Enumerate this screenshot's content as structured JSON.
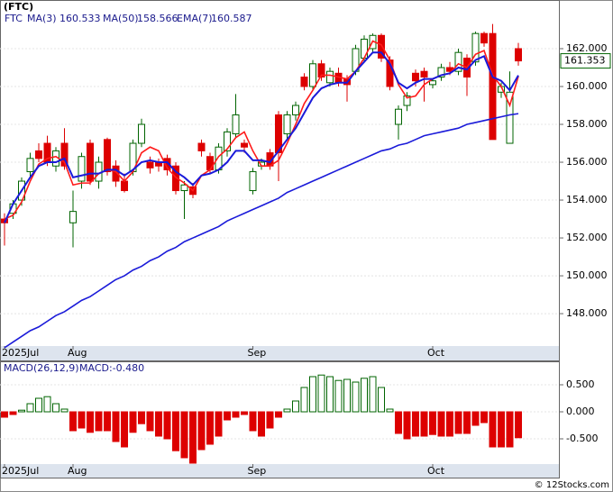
{
  "chart_data": [
    {
      "type": "candlestick",
      "title": "(FTC)",
      "symbol": "FTC",
      "categories": [
        "2025Jul",
        null,
        null,
        null,
        null,
        null,
        null,
        null,
        "Aug",
        null,
        null,
        null,
        null,
        null,
        null,
        null,
        null,
        null,
        null,
        null,
        null,
        null,
        null,
        null,
        null,
        null,
        null,
        null,
        null,
        "Sep",
        null,
        null,
        null,
        null,
        null,
        null,
        null,
        null,
        null,
        null,
        null,
        null,
        null,
        null,
        null,
        null,
        null,
        null,
        null,
        null,
        "Oct",
        null,
        null,
        null,
        null,
        null,
        null,
        null,
        null,
        null,
        null
      ],
      "open": [
        153.0,
        153.3,
        154.0,
        155.5,
        156.6,
        157.0,
        155.8,
        157.0,
        152.8,
        155.0,
        157.0,
        155.0,
        157.2,
        155.8,
        155.0,
        155.5,
        157.0,
        156.0,
        156.0,
        156.2,
        155.8,
        154.5,
        154.7,
        157.0,
        156.3,
        155.6,
        156.6,
        157.5,
        157.0,
        154.5,
        155.8,
        156.5,
        158.5,
        157.5,
        158.5,
        160.5,
        160.0,
        161.2,
        160.2,
        160.7,
        160.4,
        160.8,
        161.5,
        162.0,
        162.7,
        161.4,
        158.0,
        159.0,
        160.7,
        160.8,
        160.1,
        160.5,
        161.0,
        160.8,
        161.5,
        161.3,
        162.8,
        162.8,
        159.7,
        157.0,
        162.0
      ],
      "high": [
        153.3,
        154.0,
        155.2,
        156.5,
        157.0,
        157.4,
        156.8,
        157.8,
        154.5,
        156.5,
        157.2,
        156.3,
        157.3,
        156.1,
        155.4,
        157.2,
        158.3,
        156.3,
        156.2,
        156.4,
        156.0,
        155.0,
        154.9,
        157.2,
        156.5,
        157.0,
        157.8,
        159.6,
        157.2,
        155.7,
        156.2,
        156.7,
        158.7,
        158.7,
        159.2,
        160.7,
        161.4,
        161.4,
        161.0,
        161.0,
        160.6,
        162.2,
        162.7,
        162.8,
        162.8,
        161.6,
        159.0,
        159.7,
        160.9,
        161.0,
        160.4,
        161.2,
        161.3,
        162.0,
        161.7,
        162.9,
        162.9,
        163.3,
        160.2,
        160.8,
        162.3
      ],
      "low": [
        151.6,
        153.0,
        153.7,
        155.2,
        156.0,
        155.8,
        155.5,
        155.6,
        151.5,
        154.6,
        154.8,
        154.6,
        155.3,
        154.7,
        154.4,
        155.3,
        156.8,
        155.4,
        155.5,
        155.3,
        154.3,
        153.0,
        154.1,
        156.3,
        155.4,
        155.4,
        156.3,
        157.3,
        156.5,
        154.3,
        155.6,
        155.6,
        155.0,
        157.2,
        158.2,
        159.8,
        159.8,
        160.3,
        160.0,
        160.0,
        159.2,
        160.6,
        161.3,
        161.8,
        161.3,
        159.8,
        157.2,
        158.7,
        160.0,
        159.2,
        159.9,
        160.3,
        160.6,
        160.6,
        159.5,
        161.1,
        162.1,
        157.2,
        159.4,
        157.0,
        161.1
      ],
      "close": [
        152.8,
        153.8,
        155.0,
        156.2,
        156.2,
        156.0,
        156.6,
        155.8,
        153.4,
        156.3,
        155.0,
        156.0,
        155.5,
        155.0,
        154.5,
        157.0,
        158.0,
        155.7,
        155.8,
        155.6,
        154.5,
        154.8,
        154.3,
        156.6,
        155.6,
        156.8,
        157.6,
        158.5,
        156.8,
        155.5,
        156.0,
        155.8,
        156.5,
        158.5,
        159.0,
        160.0,
        161.2,
        160.5,
        160.8,
        160.2,
        160.1,
        162.0,
        162.5,
        162.7,
        161.5,
        160.0,
        158.8,
        159.5,
        160.3,
        160.5,
        160.3,
        161.0,
        160.8,
        161.8,
        160.5,
        162.8,
        162.3,
        157.2,
        160.0,
        159.7,
        161.353
      ],
      "up_color": "#006400",
      "down_color": "#dd0000",
      "series": [
        {
          "name": "MA(3)",
          "color": "#ff1a1a",
          "legend_value": 160.533,
          "values": [
            153.0,
            153.2,
            153.9,
            155.0,
            155.9,
            156.2,
            156.3,
            156.0,
            154.8,
            154.9,
            154.9,
            155.4,
            155.6,
            155.5,
            155.0,
            155.5,
            156.5,
            156.8,
            156.6,
            155.7,
            155.2,
            154.9,
            154.5,
            155.3,
            155.6,
            156.3,
            156.7,
            157.3,
            157.6,
            156.6,
            155.8,
            155.8,
            156.1,
            157.0,
            158.0,
            159.1,
            159.8,
            160.6,
            160.6,
            160.5,
            160.4,
            160.8,
            161.5,
            162.4,
            162.2,
            161.4,
            160.1,
            159.4,
            159.5,
            160.1,
            160.4,
            160.6,
            160.7,
            161.2,
            161.0,
            161.7,
            161.9,
            160.6,
            160.0,
            159.0,
            160.533
          ]
        },
        {
          "name": "MA(50)",
          "color": "#1a1ad9",
          "legend_value": 158.566,
          "values": [
            146.2,
            146.5,
            146.8,
            147.1,
            147.3,
            147.6,
            147.9,
            148.1,
            148.4,
            148.7,
            148.9,
            149.2,
            149.5,
            149.8,
            150.0,
            150.3,
            150.5,
            150.8,
            151.0,
            151.3,
            151.5,
            151.8,
            152.0,
            152.2,
            152.4,
            152.6,
            152.9,
            153.1,
            153.3,
            153.5,
            153.7,
            153.9,
            154.1,
            154.4,
            154.6,
            154.8,
            155.0,
            155.2,
            155.4,
            155.6,
            155.8,
            156.0,
            156.2,
            156.4,
            156.6,
            156.7,
            156.9,
            157.0,
            157.2,
            157.4,
            157.5,
            157.6,
            157.7,
            157.8,
            158.0,
            158.1,
            158.2,
            158.3,
            158.4,
            158.5,
            158.566
          ]
        },
        {
          "name": "EMA(7)",
          "color": "#1a1ad9",
          "legend_value": 160.587,
          "values": [
            152.8,
            153.8,
            154.5,
            155.2,
            155.8,
            156.0,
            156.0,
            156.2,
            155.2,
            155.3,
            155.4,
            155.4,
            155.6,
            155.6,
            155.3,
            155.6,
            156.0,
            156.1,
            156.0,
            156.0,
            155.5,
            155.2,
            154.8,
            155.3,
            155.4,
            155.6,
            156.0,
            156.6,
            156.6,
            156.1,
            156.1,
            156.0,
            156.6,
            157.2,
            157.8,
            158.6,
            159.4,
            159.9,
            160.1,
            160.2,
            160.2,
            160.8,
            161.3,
            161.8,
            161.8,
            161.2,
            160.2,
            159.9,
            160.2,
            160.4,
            160.4,
            160.6,
            160.7,
            161.0,
            160.9,
            161.4,
            161.6,
            160.5,
            160.3,
            159.8,
            160.587
          ]
        }
      ],
      "last_price": 161.353,
      "ylim": [
        146.29,
        164.57
      ],
      "yticks": [
        {
          "value": 148,
          "label": "148.000"
        },
        {
          "value": 150,
          "label": "150.000"
        },
        {
          "value": 152,
          "label": "152.000"
        },
        {
          "value": 154,
          "label": "154.000"
        },
        {
          "value": 156,
          "label": "156.000"
        },
        {
          "value": 158,
          "label": "158.000"
        },
        {
          "value": 160,
          "label": "160.000"
        },
        {
          "value": 162,
          "label": "162.000"
        }
      ],
      "grid": true
    },
    {
      "type": "bar",
      "title": "MACD(26,12,9)",
      "macd_label": "MACD:-0.480",
      "values": [
        -0.1,
        -0.05,
        0.03,
        0.15,
        0.25,
        0.28,
        0.15,
        0.05,
        -0.35,
        -0.3,
        -0.38,
        -0.35,
        -0.35,
        -0.55,
        -0.65,
        -0.38,
        -0.22,
        -0.35,
        -0.45,
        -0.5,
        -0.72,
        -0.85,
        -0.95,
        -0.7,
        -0.6,
        -0.45,
        -0.15,
        -0.1,
        -0.05,
        -0.35,
        -0.45,
        -0.3,
        -0.1,
        0.05,
        0.2,
        0.45,
        0.65,
        0.68,
        0.65,
        0.58,
        0.6,
        0.55,
        0.62,
        0.65,
        0.45,
        0.05,
        -0.4,
        -0.5,
        -0.45,
        -0.45,
        -0.42,
        -0.45,
        -0.45,
        -0.4,
        -0.4,
        -0.25,
        -0.2,
        -0.65,
        -0.65,
        -0.65,
        -0.48
      ],
      "up_color": "#006400",
      "down_color": "#dd0000",
      "ylim": [
        -0.967,
        0.917
      ],
      "yticks": [
        {
          "value": -0.5,
          "label": "-0.500"
        },
        {
          "value": 0,
          "label": "0.000"
        },
        {
          "value": 0.5,
          "label": "0.500"
        }
      ],
      "grid": true
    }
  ],
  "footer": "© 12Stocks.com"
}
